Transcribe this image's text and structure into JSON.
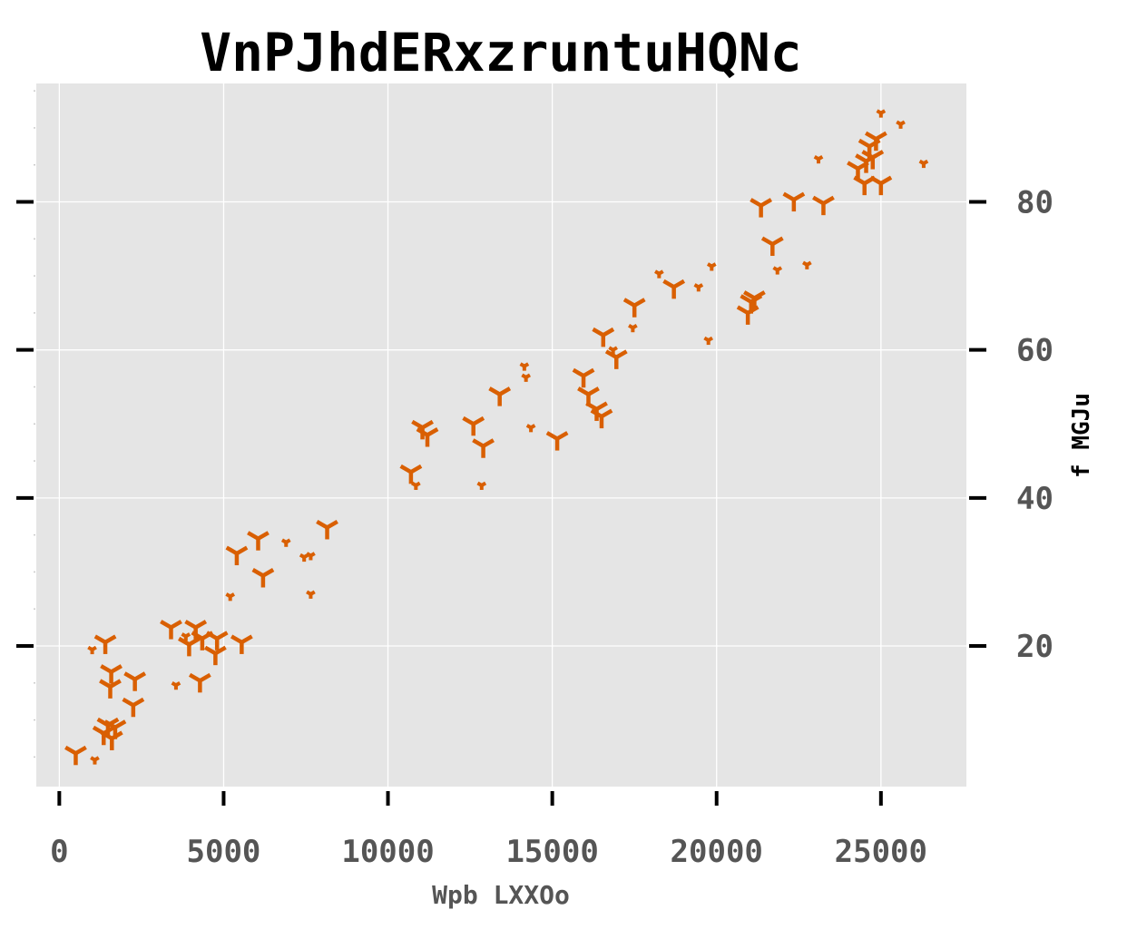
{
  "colors": {
    "panel_bg": "#e5e5e5",
    "grid": "#ffffff",
    "marker": "#d95f02",
    "tick": "#000000",
    "tick_label": "#555555",
    "title": "#000000"
  },
  "chart_data": {
    "type": "scatter",
    "title": "VnPJhdERxzruntuHQNc",
    "xlabel": "Wpb LXXOo",
    "ylabel": "f MGJu",
    "xlim": [
      -700,
      27600
    ],
    "ylim": [
      1,
      96
    ],
    "x_ticks": [
      0,
      5000,
      10000,
      15000,
      20000,
      25000
    ],
    "x_tick_labels": [
      "0",
      "5000",
      "10000",
      "15000",
      "20000",
      "25000"
    ],
    "y_ticks": [
      20,
      40,
      60,
      80
    ],
    "y_tick_labels": [
      "20",
      "40",
      "60",
      "80"
    ],
    "y_axis_position": "right",
    "grid": true,
    "marker": "tri_down",
    "series": [
      {
        "name": "",
        "color": "#d95f02",
        "points": [
          {
            "x": 500,
            "y": 5.5,
            "s": "L"
          },
          {
            "x": 1080,
            "y": 4.6,
            "s": "S"
          },
          {
            "x": 1000,
            "y": 19.5,
            "s": "S"
          },
          {
            "x": 1400,
            "y": 20.5,
            "s": "L"
          },
          {
            "x": 1350,
            "y": 8.2,
            "s": "L"
          },
          {
            "x": 1480,
            "y": 9.3,
            "s": "L"
          },
          {
            "x": 1600,
            "y": 7.5,
            "s": "L"
          },
          {
            "x": 1700,
            "y": 9.0,
            "s": "L"
          },
          {
            "x": 1550,
            "y": 14.5,
            "s": "L"
          },
          {
            "x": 1580,
            "y": 16.5,
            "s": "L"
          },
          {
            "x": 2300,
            "y": 15.5,
            "s": "L"
          },
          {
            "x": 2250,
            "y": 12.0,
            "s": "L"
          },
          {
            "x": 3400,
            "y": 22.5,
            "s": "L"
          },
          {
            "x": 3550,
            "y": 14.7,
            "s": "S"
          },
          {
            "x": 3850,
            "y": 21.3,
            "s": "S"
          },
          {
            "x": 3950,
            "y": 20.2,
            "s": "L"
          },
          {
            "x": 4150,
            "y": 22.5,
            "s": "L"
          },
          {
            "x": 4350,
            "y": 21.0,
            "s": "L"
          },
          {
            "x": 4280,
            "y": 15.3,
            "s": "L"
          },
          {
            "x": 4800,
            "y": 21.0,
            "s": "L"
          },
          {
            "x": 4750,
            "y": 19.0,
            "s": "L"
          },
          {
            "x": 5550,
            "y": 20.5,
            "s": "L"
          },
          {
            "x": 5200,
            "y": 26.7,
            "s": "S"
          },
          {
            "x": 5400,
            "y": 32.5,
            "s": "L"
          },
          {
            "x": 6050,
            "y": 34.5,
            "s": "L"
          },
          {
            "x": 6200,
            "y": 29.5,
            "s": "L"
          },
          {
            "x": 6900,
            "y": 34.0,
            "s": "S"
          },
          {
            "x": 7450,
            "y": 32.0,
            "s": "S"
          },
          {
            "x": 7650,
            "y": 32.2,
            "s": "S"
          },
          {
            "x": 7650,
            "y": 27.0,
            "s": "S"
          },
          {
            "x": 8150,
            "y": 36.0,
            "s": "L"
          },
          {
            "x": 10700,
            "y": 43.5,
            "s": "L"
          },
          {
            "x": 10850,
            "y": 41.7,
            "s": "S"
          },
          {
            "x": 11050,
            "y": 49.5,
            "s": "L"
          },
          {
            "x": 11200,
            "y": 48.5,
            "s": "L"
          },
          {
            "x": 12600,
            "y": 50.0,
            "s": "L"
          },
          {
            "x": 12900,
            "y": 47.0,
            "s": "L"
          },
          {
            "x": 12850,
            "y": 41.7,
            "s": "S"
          },
          {
            "x": 13400,
            "y": 54.0,
            "s": "L"
          },
          {
            "x": 14150,
            "y": 57.8,
            "s": "S"
          },
          {
            "x": 14200,
            "y": 56.3,
            "s": "S"
          },
          {
            "x": 14350,
            "y": 49.5,
            "s": "S"
          },
          {
            "x": 15150,
            "y": 48.0,
            "s": "L"
          },
          {
            "x": 15950,
            "y": 56.5,
            "s": "L"
          },
          {
            "x": 16100,
            "y": 54.0,
            "s": "L"
          },
          {
            "x": 16350,
            "y": 52.0,
            "s": "L"
          },
          {
            "x": 16500,
            "y": 51.0,
            "s": "L"
          },
          {
            "x": 16550,
            "y": 62.0,
            "s": "L"
          },
          {
            "x": 16850,
            "y": 60.0,
            "s": "S"
          },
          {
            "x": 16950,
            "y": 59.0,
            "s": "L"
          },
          {
            "x": 17450,
            "y": 63.0,
            "s": "S"
          },
          {
            "x": 17500,
            "y": 66.0,
            "s": "L"
          },
          {
            "x": 18250,
            "y": 70.3,
            "s": "S"
          },
          {
            "x": 18700,
            "y": 68.5,
            "s": "L"
          },
          {
            "x": 19450,
            "y": 68.5,
            "s": "S"
          },
          {
            "x": 19750,
            "y": 61.3,
            "s": "S"
          },
          {
            "x": 19850,
            "y": 71.3,
            "s": "S"
          },
          {
            "x": 20950,
            "y": 65.0,
            "s": "L"
          },
          {
            "x": 21050,
            "y": 66.5,
            "s": "L"
          },
          {
            "x": 21150,
            "y": 67.0,
            "s": "L"
          },
          {
            "x": 21350,
            "y": 79.5,
            "s": "L"
          },
          {
            "x": 21700,
            "y": 74.3,
            "s": "L"
          },
          {
            "x": 21850,
            "y": 70.8,
            "s": "S"
          },
          {
            "x": 22350,
            "y": 80.3,
            "s": "L"
          },
          {
            "x": 22750,
            "y": 71.5,
            "s": "S"
          },
          {
            "x": 23100,
            "y": 85.8,
            "s": "S"
          },
          {
            "x": 23250,
            "y": 79.8,
            "s": "L"
          },
          {
            "x": 24300,
            "y": 84.5,
            "s": "L"
          },
          {
            "x": 24500,
            "y": 82.5,
            "s": "L"
          },
          {
            "x": 24550,
            "y": 85.5,
            "s": "L"
          },
          {
            "x": 24650,
            "y": 87.5,
            "s": "L"
          },
          {
            "x": 24850,
            "y": 88.5,
            "s": "L"
          },
          {
            "x": 24750,
            "y": 86.0,
            "s": "L"
          },
          {
            "x": 25000,
            "y": 82.5,
            "s": "L"
          },
          {
            "x": 25000,
            "y": 92.0,
            "s": "S"
          },
          {
            "x": 25600,
            "y": 90.5,
            "s": "S"
          },
          {
            "x": 26300,
            "y": 85.2,
            "s": "S"
          }
        ]
      }
    ]
  }
}
